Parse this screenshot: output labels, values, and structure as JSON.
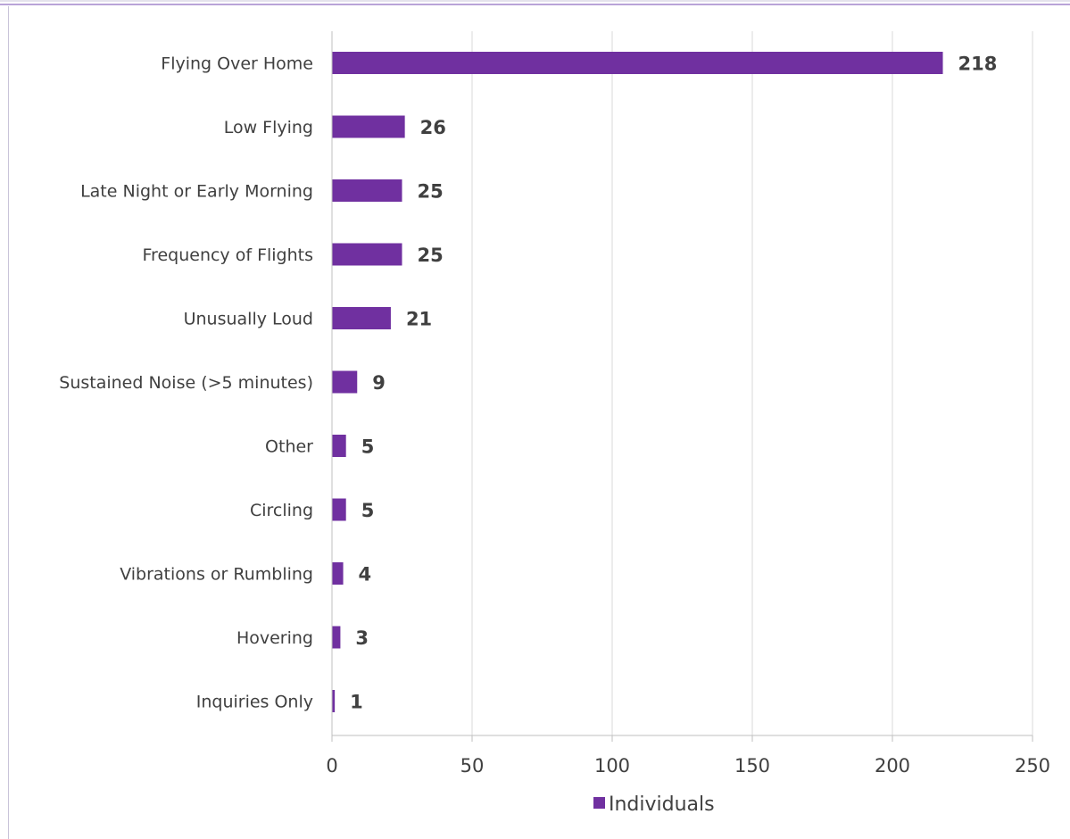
{
  "chart_data": {
    "type": "bar",
    "orientation": "horizontal",
    "categories": [
      "Flying Over Home",
      "Low Flying",
      "Late Night or Early Morning",
      "Frequency of Flights",
      "Unusually Loud",
      "Sustained Noise (>5 minutes)",
      "Other",
      "Circling",
      "Vibrations or Rumbling",
      "Hovering",
      "Inquiries Only"
    ],
    "series": [
      {
        "name": "Individuals",
        "values": [
          218,
          26,
          25,
          25,
          21,
          9,
          5,
          5,
          4,
          3,
          1
        ]
      }
    ],
    "xlim": [
      0,
      250
    ],
    "xticks": [
      "0",
      "50",
      "100",
      "150",
      "200",
      "250"
    ],
    "data_labels": true,
    "grid": "vertical",
    "legend": "bottom",
    "colors": {
      "bar": "#7030a0",
      "grid": "#d9d9d9",
      "axis": "#bfbfbf",
      "text": "#404040",
      "frame": "#c9c4d9"
    }
  }
}
